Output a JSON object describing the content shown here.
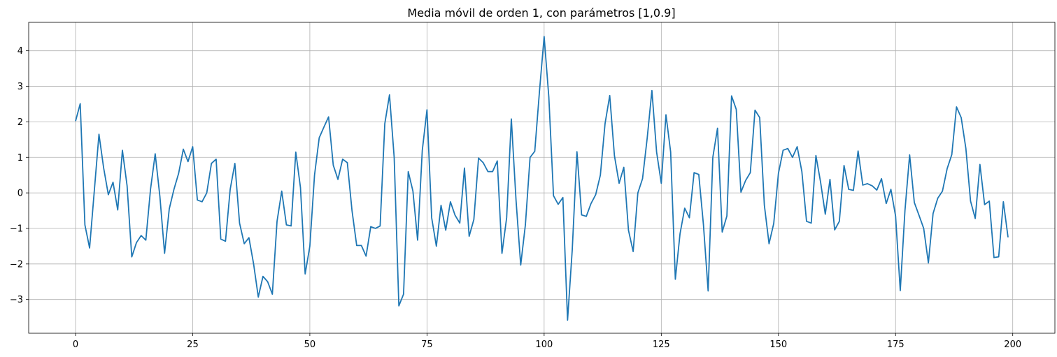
{
  "chart_data": {
    "type": "line",
    "title": "Media móvil de orden 1, con parámetros [1,0.9]",
    "xlabel": "",
    "ylabel": "",
    "xlim": [
      -10,
      209
    ],
    "ylim": [
      -3.95,
      4.8
    ],
    "xticks": [
      0,
      25,
      50,
      75,
      100,
      125,
      150,
      175,
      200
    ],
    "yticks": [
      -3,
      -2,
      -1,
      0,
      1,
      2,
      3,
      4
    ],
    "grid": true,
    "color": "#1f77b4",
    "series": [
      {
        "x_start": 0,
        "values": [
          2.02,
          2.51,
          -0.9,
          -1.55,
          0.05,
          1.65,
          0.7,
          -0.05,
          0.3,
          -0.48,
          1.2,
          0.2,
          -1.8,
          -1.4,
          -1.2,
          -1.33,
          0.1,
          1.1,
          -0.1,
          -1.7,
          -0.45,
          0.1,
          0.55,
          1.23,
          0.88,
          1.3,
          -0.2,
          -0.25,
          0.0,
          0.83,
          0.95,
          -1.3,
          -1.36,
          0.1,
          0.83,
          -0.85,
          -1.43,
          -1.26,
          -2.0,
          -2.93,
          -2.35,
          -2.5,
          -2.85,
          -0.8,
          0.05,
          -0.9,
          -0.93,
          1.15,
          0.15,
          -2.28,
          -1.5,
          0.5,
          1.55,
          1.85,
          2.14,
          0.78,
          0.38,
          0.95,
          0.85,
          -0.5,
          -1.48,
          -1.48,
          -1.78,
          -0.95,
          -1.0,
          -0.93,
          1.95,
          2.76,
          1.0,
          -3.18,
          -2.85,
          0.6,
          0.05,
          -1.33,
          1.2,
          2.34,
          -0.7,
          -1.5,
          -0.35,
          -1.05,
          -0.25,
          -0.63,
          -0.85,
          0.7,
          -1.22,
          -0.75,
          0.98,
          0.85,
          0.6,
          0.6,
          0.9,
          -1.7,
          -0.7,
          2.08,
          -0.2,
          -2.03,
          -0.9,
          1.0,
          1.17,
          2.85,
          4.4,
          2.7,
          -0.08,
          -0.32,
          -0.13,
          -3.58,
          -1.6,
          1.16,
          -0.62,
          -0.66,
          -0.3,
          -0.05,
          0.5,
          1.95,
          2.74,
          1.05,
          0.27,
          0.72,
          -1.05,
          -1.65,
          0.0,
          0.4,
          1.55,
          2.88,
          1.15,
          0.27,
          2.2,
          1.15,
          -2.43,
          -1.15,
          -0.43,
          -0.7,
          0.57,
          0.52,
          -0.9,
          -2.76,
          1.0,
          1.82,
          -1.1,
          -0.65,
          2.73,
          2.35,
          0.02,
          0.35,
          0.57,
          2.33,
          2.12,
          -0.35,
          -1.43,
          -0.86,
          0.55,
          1.2,
          1.25,
          1.0,
          1.3,
          0.6,
          -0.8,
          -0.85,
          1.05,
          0.3,
          -0.6,
          0.38,
          -1.04,
          -0.8,
          0.77,
          0.1,
          0.07,
          1.18,
          0.22,
          0.26,
          0.2,
          0.08,
          0.4,
          -0.3,
          0.1,
          -0.65,
          -2.75,
          -0.5,
          1.07,
          -0.27,
          -0.63,
          -1.0,
          -1.97,
          -0.58,
          -0.15,
          0.05,
          0.68,
          1.08,
          2.42,
          2.12,
          1.25,
          -0.23,
          -0.72,
          0.8,
          -0.33,
          -0.23,
          -1.82,
          -1.8,
          -0.25,
          -1.25
        ]
      }
    ]
  }
}
